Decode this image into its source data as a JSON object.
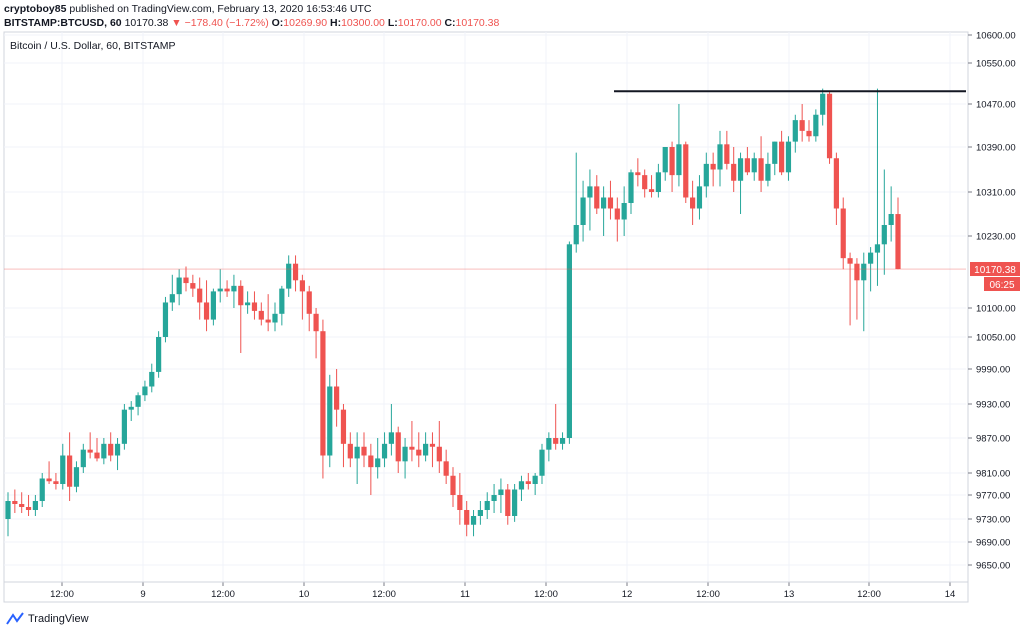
{
  "header": {
    "author": "cryptoboy85",
    "published_text": "published on TradingView.com, February 13, 2020 16:53:46 UTC",
    "symbol": "BITSTAMP:BTCUSD, 60",
    "last": "10170.38",
    "change": "−178.40 (−1.72%)",
    "open_label": "O:",
    "open": "10269.90",
    "high_label": "H:",
    "high": "10300.00",
    "low_label": "L:",
    "low": "10170.00",
    "close_label": "C:",
    "close": "10170.38"
  },
  "chart_title": "Bitcoin / U.S. Dollar, 60, BITSTAMP",
  "price_badge": "10170.38",
  "countdown_badge": "06:25",
  "footer": {
    "brand": "TradingView"
  },
  "colors": {
    "up": "#26a69a",
    "down": "#ef5350",
    "grid": "#f0f3fa",
    "axis": "#131722"
  },
  "chart_data": {
    "type": "candlestick",
    "title": "Bitcoin / U.S. Dollar, 60, BITSTAMP",
    "ylim": [
      9620,
      10600
    ],
    "y_ticks": [
      10600,
      10550,
      10470,
      10390,
      10310,
      10230,
      10100,
      10050,
      9990,
      9930,
      9870,
      9810,
      9770,
      9730,
      9690,
      9650
    ],
    "y_tick_labels": [
      "10600.00",
      "10550.00",
      "10470.00",
      "10390.00",
      "10310.00",
      "10230.00",
      "10100.00",
      "10050.00",
      "9990.00",
      "9930.00",
      "9870.00",
      "9810.00",
      "9770.00",
      "9730.00",
      "9690.00",
      "9650.00"
    ],
    "x_ticks": [
      "12:00",
      "9",
      "12:00",
      "10",
      "12:00",
      "11",
      "12:00",
      "12",
      "12:00",
      "13",
      "12:00",
      "14"
    ],
    "resistance_level": 10495,
    "last_price": 10170.38,
    "candles_ohlc": [
      [
        9730,
        9775,
        9700,
        9760
      ],
      [
        9760,
        9780,
        9740,
        9755
      ],
      [
        9755,
        9775,
        9740,
        9750
      ],
      [
        9750,
        9770,
        9735,
        9745
      ],
      [
        9745,
        9770,
        9735,
        9760
      ],
      [
        9760,
        9810,
        9750,
        9800
      ],
      [
        9800,
        9830,
        9790,
        9795
      ],
      [
        9795,
        9810,
        9780,
        9790
      ],
      [
        9790,
        9860,
        9780,
        9840
      ],
      [
        9840,
        9880,
        9760,
        9785
      ],
      [
        9785,
        9830,
        9775,
        9820
      ],
      [
        9820,
        9860,
        9810,
        9850
      ],
      [
        9850,
        9880,
        9835,
        9845
      ],
      [
        9845,
        9870,
        9830,
        9835
      ],
      [
        9835,
        9870,
        9825,
        9860
      ],
      [
        9860,
        9880,
        9830,
        9840
      ],
      [
        9840,
        9870,
        9815,
        9860
      ],
      [
        9860,
        9930,
        9850,
        9920
      ],
      [
        9920,
        9935,
        9900,
        9925
      ],
      [
        9925,
        9950,
        9910,
        9945
      ],
      [
        9945,
        9970,
        9935,
        9960
      ],
      [
        9960,
        10000,
        9950,
        9985
      ],
      [
        9985,
        10060,
        9975,
        10050
      ],
      [
        10050,
        10120,
        10040,
        10110
      ],
      [
        10110,
        10160,
        10095,
        10125
      ],
      [
        10125,
        10170,
        10105,
        10155
      ],
      [
        10155,
        10175,
        10130,
        10145
      ],
      [
        10145,
        10160,
        10120,
        10135
      ],
      [
        10135,
        10155,
        10080,
        10110
      ],
      [
        10110,
        10150,
        10060,
        10080
      ],
      [
        10080,
        10135,
        10070,
        10130
      ],
      [
        10130,
        10170,
        10110,
        10135
      ],
      [
        10135,
        10150,
        10120,
        10130
      ],
      [
        10130,
        10160,
        10100,
        10140
      ],
      [
        10140,
        10150,
        10020,
        10105
      ],
      [
        10105,
        10130,
        10090,
        10110
      ],
      [
        10110,
        10130,
        10080,
        10095
      ],
      [
        10095,
        10110,
        10070,
        10080
      ],
      [
        10080,
        10125,
        10060,
        10075
      ],
      [
        10075,
        10110,
        10060,
        10090
      ],
      [
        10090,
        10140,
        10070,
        10135
      ],
      [
        10135,
        10195,
        10120,
        10180
      ],
      [
        10180,
        10195,
        10130,
        10150
      ],
      [
        10150,
        10160,
        10080,
        10130
      ],
      [
        10130,
        10140,
        10060,
        10090
      ],
      [
        10090,
        10100,
        10010,
        10060
      ],
      [
        10060,
        10080,
        9800,
        9840
      ],
      [
        9840,
        9980,
        9820,
        9960
      ],
      [
        9960,
        9990,
        9890,
        9920
      ],
      [
        9920,
        9930,
        9820,
        9860
      ],
      [
        9860,
        9880,
        9820,
        9835
      ],
      [
        9835,
        9880,
        9790,
        9855
      ],
      [
        9855,
        9880,
        9820,
        9840
      ],
      [
        9840,
        9860,
        9770,
        9820
      ],
      [
        9820,
        9870,
        9800,
        9835
      ],
      [
        9835,
        9880,
        9820,
        9860
      ],
      [
        9860,
        9930,
        9840,
        9880
      ],
      [
        9880,
        9890,
        9810,
        9830
      ],
      [
        9830,
        9870,
        9800,
        9855
      ],
      [
        9855,
        9900,
        9830,
        9850
      ],
      [
        9850,
        9880,
        9820,
        9840
      ],
      [
        9840,
        9880,
        9830,
        9860
      ],
      [
        9860,
        9880,
        9820,
        9855
      ],
      [
        9855,
        9900,
        9810,
        9830
      ],
      [
        9830,
        9850,
        9790,
        9805
      ],
      [
        9805,
        9820,
        9750,
        9770
      ],
      [
        9770,
        9810,
        9720,
        9745
      ],
      [
        9745,
        9760,
        9700,
        9720
      ],
      [
        9720,
        9745,
        9700,
        9735
      ],
      [
        9735,
        9760,
        9720,
        9745
      ],
      [
        9745,
        9775,
        9730,
        9760
      ],
      [
        9760,
        9790,
        9740,
        9770
      ],
      [
        9770,
        9800,
        9740,
        9780
      ],
      [
        9780,
        9790,
        9720,
        9735
      ],
      [
        9735,
        9790,
        9725,
        9780
      ],
      [
        9780,
        9805,
        9760,
        9795
      ],
      [
        9795,
        9810,
        9780,
        9790
      ],
      [
        9790,
        9810,
        9770,
        9805
      ],
      [
        9805,
        9860,
        9790,
        9850
      ],
      [
        9850,
        9880,
        9830,
        9870
      ],
      [
        9870,
        9930,
        9850,
        9860
      ],
      [
        9860,
        9880,
        9850,
        9870
      ],
      [
        9870,
        10220,
        9860,
        10215
      ],
      [
        10215,
        10380,
        10200,
        10250
      ],
      [
        10250,
        10330,
        10220,
        10300
      ],
      [
        10300,
        10350,
        10240,
        10320
      ],
      [
        10320,
        10340,
        10270,
        10280
      ],
      [
        10280,
        10320,
        10230,
        10300
      ],
      [
        10300,
        10330,
        10260,
        10280
      ],
      [
        10280,
        10300,
        10220,
        10260
      ],
      [
        10260,
        10320,
        10230,
        10290
      ],
      [
        10290,
        10350,
        10270,
        10345
      ],
      [
        10345,
        10370,
        10320,
        10340
      ],
      [
        10340,
        10350,
        10300,
        10315
      ],
      [
        10315,
        10340,
        10300,
        10310
      ],
      [
        10310,
        10360,
        10300,
        10345
      ],
      [
        10345,
        10390,
        10330,
        10390
      ],
      [
        10390,
        10400,
        10310,
        10340
      ],
      [
        10340,
        10470,
        10320,
        10395
      ],
      [
        10395,
        10400,
        10290,
        10300
      ],
      [
        10300,
        10330,
        10250,
        10280
      ],
      [
        10280,
        10340,
        10260,
        10320
      ],
      [
        10320,
        10380,
        10300,
        10360
      ],
      [
        10360,
        10380,
        10320,
        10350
      ],
      [
        10350,
        10420,
        10320,
        10395
      ],
      [
        10395,
        10420,
        10350,
        10360
      ],
      [
        10360,
        10390,
        10310,
        10330
      ],
      [
        10330,
        10380,
        10270,
        10370
      ],
      [
        10370,
        10390,
        10340,
        10345
      ],
      [
        10345,
        10380,
        10330,
        10370
      ],
      [
        10370,
        10410,
        10310,
        10330
      ],
      [
        10330,
        10380,
        10320,
        10360
      ],
      [
        10360,
        10400,
        10340,
        10400
      ],
      [
        10400,
        10420,
        10340,
        10345
      ],
      [
        10345,
        10410,
        10330,
        10400
      ],
      [
        10400,
        10450,
        10380,
        10440
      ],
      [
        10440,
        10470,
        10400,
        10420
      ],
      [
        10420,
        10440,
        10400,
        10410
      ],
      [
        10410,
        10460,
        10400,
        10450
      ],
      [
        10450,
        10500,
        10430,
        10490
      ],
      [
        10490,
        10495,
        10360,
        10370
      ],
      [
        10370,
        10380,
        10250,
        10280
      ],
      [
        10280,
        10300,
        10170,
        10190
      ],
      [
        10190,
        10200,
        10070,
        10180
      ],
      [
        10180,
        10190,
        10080,
        10150
      ],
      [
        10150,
        10200,
        10060,
        10180
      ],
      [
        10180,
        10210,
        10130,
        10200
      ],
      [
        10200,
        10500,
        10140,
        10215
      ],
      [
        10215,
        10350,
        10160,
        10250
      ],
      [
        10250,
        10320,
        10220,
        10270
      ],
      [
        10269.9,
        10300,
        10170,
        10170.38
      ]
    ]
  }
}
